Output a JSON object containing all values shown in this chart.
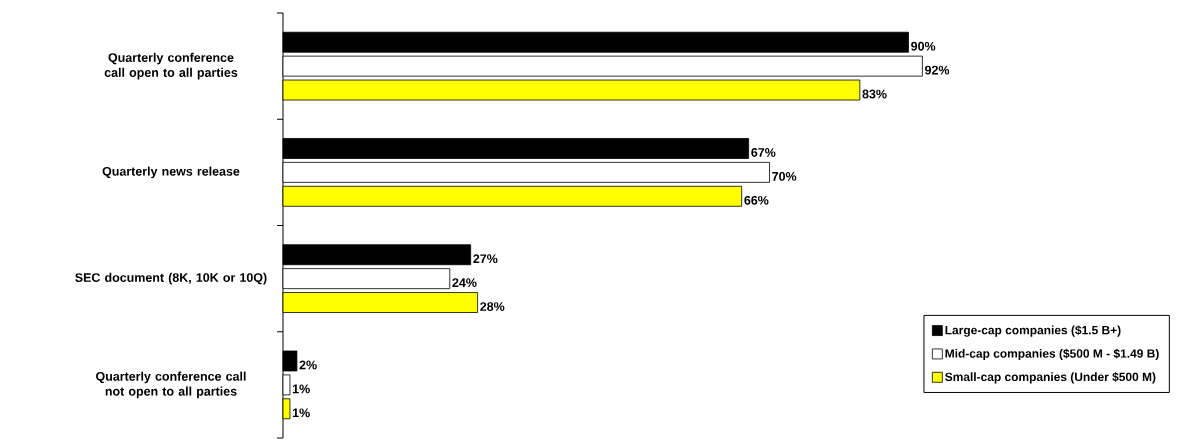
{
  "chart_data": {
    "type": "bar",
    "orientation": "horizontal",
    "categories": [
      "Quarterly conference call open to all parties",
      "Quarterly news release",
      "SEC document (8K, 10K or 10Q)",
      "Quarterly conference call not open to all parties"
    ],
    "series": [
      {
        "name": "Large-cap companies ($1.5 B+)",
        "color": "#000000",
        "values": [
          90,
          67,
          27,
          2
        ],
        "value_labels": [
          "90%",
          "67%",
          "27%",
          "2%"
        ]
      },
      {
        "name": "Mid-cap companies ($500 M - $1.49 B)",
        "color": "#ffffff",
        "values": [
          92,
          70,
          24,
          1
        ],
        "value_labels": [
          "92%",
          "70%",
          "24%",
          "1%"
        ]
      },
      {
        "name": "Small-cap companies (Under $500 M)",
        "color": "#ffff00",
        "values": [
          83,
          66,
          28,
          1
        ],
        "value_labels": [
          "83%",
          "66%",
          "28%",
          "1%"
        ]
      }
    ],
    "legend": "bottom right"
  }
}
